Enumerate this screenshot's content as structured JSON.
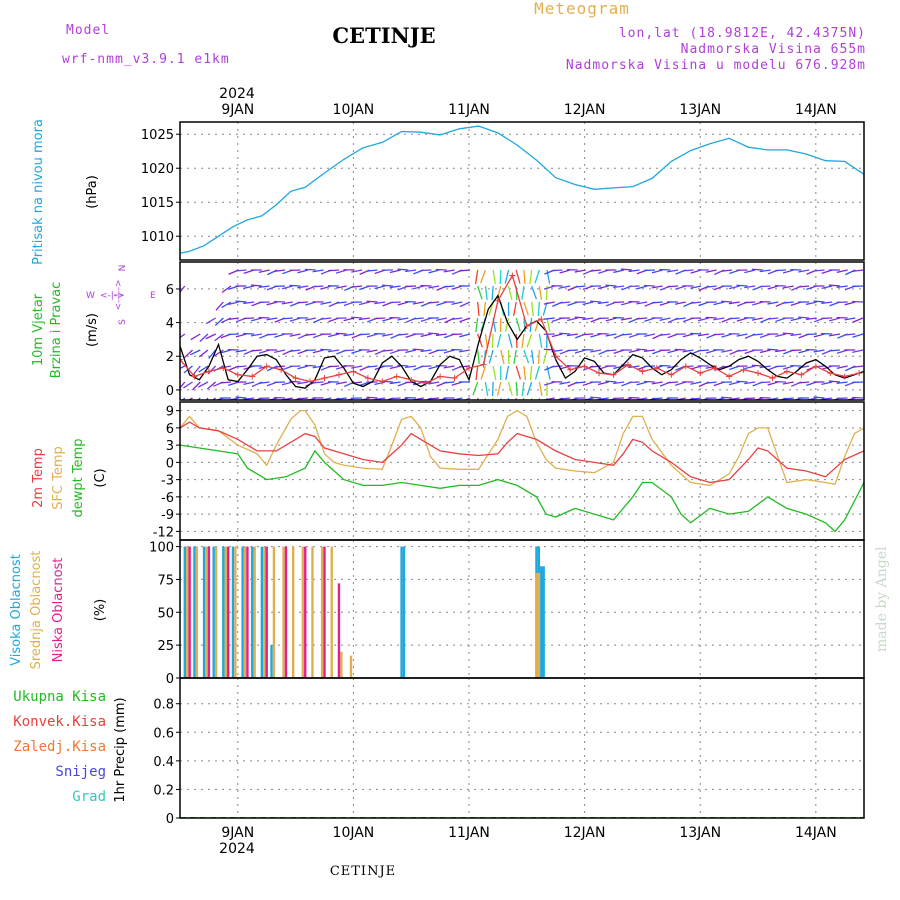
{
  "header": {
    "model_label": "Model",
    "model_value": "wrf-nmm_v3.9.1  e1km",
    "station": "CETINJE",
    "meteogram": "Meteogram",
    "lonlat": "lon,lat (18.9812E, 42.4375N)",
    "elevation": "Nadmorska Visina 655m",
    "model_elevation": "Nadmorska Visina u modelu 676.928m"
  },
  "footer": {
    "station": "CETINJE",
    "credit": "made by Angel"
  },
  "colors": {
    "magenta": "#b040d8",
    "tan": "#e0b050",
    "cyan": "#1ea8e0",
    "green": "#22bb22",
    "red": "#e84040",
    "pink": "#e02090",
    "orange": "#f07830",
    "blue": "#4848e0",
    "teal": "#30c8c0"
  },
  "time_axis": {
    "year": "2024",
    "days": [
      "9JAN",
      "10JAN",
      "11JAN",
      "12JAN",
      "13JAN",
      "14JAN"
    ],
    "x_range_hours": [
      -12,
      130
    ]
  },
  "chart_data": [
    {
      "type": "line",
      "ylabel": [
        "Pritisak na nivou mora",
        "(hPa)"
      ],
      "yticks": [
        1010,
        1015,
        1020,
        1025
      ],
      "ylim": [
        1006.5,
        1026.8
      ],
      "grid": true,
      "series": [
        {
          "color": "#1ea8e0",
          "x": [
            -12,
            -10,
            -7,
            -4,
            -1,
            2,
            5,
            8,
            11,
            14,
            18,
            22,
            26,
            30,
            34,
            38,
            42,
            46,
            50,
            54,
            58,
            62,
            66,
            70,
            74,
            78,
            82,
            86,
            90,
            94,
            98,
            102,
            106,
            110,
            114,
            118,
            122,
            126,
            130
          ],
          "y": [
            1007.5,
            1007.8,
            1008.6,
            1010.0,
            1011.4,
            1012.4,
            1013.0,
            1014.6,
            1016.6,
            1017.2,
            1019.3,
            1021.3,
            1023.0,
            1023.8,
            1025.4,
            1025.3,
            1024.9,
            1025.8,
            1026.2,
            1025.2,
            1023.4,
            1021.2,
            1018.6,
            1017.6,
            1016.9,
            1017.1,
            1017.3,
            1018.5,
            1021.0,
            1022.6,
            1023.6,
            1024.4,
            1023.1,
            1022.7,
            1022.7,
            1022.1,
            1021.1,
            1021.0,
            1019.1
          ]
        }
      ]
    },
    {
      "type": "line",
      "ylabel": [
        "10m Vjetar",
        "Brzina i Pravac",
        "(m/s)"
      ],
      "compass": [
        "N",
        "S",
        "W",
        "E"
      ],
      "yticks": [
        0,
        2,
        4,
        6
      ],
      "ylim": [
        -0.6,
        7.6
      ],
      "grid": true,
      "series": [
        {
          "name": "speed",
          "color": "#000000",
          "x": [
            -12,
            -10,
            -8,
            -6,
            -4,
            -2,
            0,
            2,
            4,
            6,
            8,
            10,
            12,
            14,
            16,
            18,
            20,
            22,
            24,
            26,
            28,
            30,
            32,
            34,
            36,
            38,
            40,
            42,
            44,
            46,
            48,
            50,
            52,
            54,
            56,
            58,
            60,
            62,
            64,
            66,
            68,
            70,
            72,
            74,
            76,
            78,
            80,
            82,
            84,
            86,
            88,
            90,
            92,
            94,
            96,
            98,
            100,
            102,
            104,
            106,
            108,
            110,
            112,
            114,
            116,
            118,
            120,
            122,
            124,
            126,
            128,
            130
          ],
          "y": [
            2.6,
            0.9,
            0.6,
            1.4,
            2.7,
            0.6,
            0.5,
            1.2,
            2.0,
            2.1,
            1.8,
            0.9,
            0.2,
            0.1,
            0.6,
            1.9,
            2.0,
            1.3,
            0.4,
            0.2,
            0.5,
            1.6,
            2.0,
            1.4,
            0.5,
            0.2,
            0.5,
            1.5,
            2.0,
            1.8,
            0.6,
            2.8,
            4.8,
            5.6,
            4.0,
            3.0,
            3.8,
            4.1,
            3.5,
            1.8,
            0.7,
            1.1,
            1.9,
            1.7,
            1.0,
            0.9,
            1.5,
            2.1,
            1.9,
            1.3,
            0.9,
            1.2,
            1.8,
            2.2,
            1.9,
            1.5,
            1.2,
            1.4,
            1.8,
            2.0,
            1.7,
            1.2,
            0.8,
            0.7,
            1.1,
            1.6,
            1.8,
            1.4,
            0.9,
            0.7,
            0.9,
            1.1
          ]
        },
        {
          "name": "gust",
          "color": "#e84040",
          "x": [
            -12,
            -9,
            -6,
            -3,
            0,
            3,
            6,
            9,
            12,
            15,
            18,
            21,
            24,
            27,
            30,
            33,
            36,
            39,
            42,
            45,
            48,
            51,
            54,
            57,
            60,
            63,
            66,
            69,
            72,
            75,
            78,
            81,
            84,
            87,
            90,
            93,
            96,
            99,
            102,
            105,
            108,
            111,
            114,
            117,
            120,
            123,
            126,
            129
          ],
          "y": [
            1.8,
            0.8,
            1.1,
            1.3,
            0.9,
            0.8,
            1.4,
            1.2,
            0.7,
            0.5,
            0.7,
            0.9,
            1.1,
            0.7,
            0.5,
            0.8,
            0.6,
            0.4,
            0.8,
            0.7,
            1.3,
            1.5,
            5.3,
            6.8,
            3.8,
            4.2,
            2.0,
            1.2,
            1.4,
            1.0,
            0.9,
            1.5,
            1.1,
            1.3,
            0.9,
            1.4,
            1.0,
            1.3,
            0.8,
            1.2,
            1.0,
            0.7,
            1.1,
            0.9,
            1.4,
            1.0,
            0.8,
            1.0
          ]
        }
      ]
    },
    {
      "type": "line",
      "ylabel": [
        "2m Temp",
        "SFC Temp",
        "dewpt Temp",
        "(C)"
      ],
      "yticks": [
        -12,
        -9,
        -6,
        -3,
        0,
        3,
        6,
        9
      ],
      "ylim": [
        -13.5,
        10.5
      ],
      "grid": true,
      "series": [
        {
          "name": "SFC Temp",
          "color": "#e0b050",
          "x": [
            -12,
            -10,
            -8,
            -4,
            0,
            4,
            6,
            8,
            11,
            13,
            14,
            16,
            18,
            20,
            22,
            26,
            30,
            32,
            34,
            36,
            38,
            40,
            42,
            46,
            50,
            54,
            56,
            58,
            60,
            62,
            64,
            66,
            70,
            74,
            78,
            80,
            82,
            84,
            86,
            90,
            94,
            98,
            102,
            104,
            106,
            108,
            110,
            114,
            118,
            122,
            124,
            126,
            128,
            130
          ],
          "y": [
            6.0,
            8.0,
            6.0,
            5.5,
            3.0,
            1.5,
            -0.5,
            3.0,
            7.5,
            9.0,
            9.0,
            6.5,
            1.5,
            0.0,
            -0.5,
            -1.0,
            -1.2,
            3.0,
            7.5,
            8.0,
            6.0,
            1.0,
            -1.0,
            -1.2,
            -1.2,
            4.0,
            8.0,
            9.0,
            8.0,
            3.5,
            0.5,
            -1.0,
            -1.5,
            -1.8,
            0.0,
            5.0,
            8.0,
            8.0,
            4.0,
            -0.5,
            -3.5,
            -4.0,
            -2.0,
            1.0,
            5.0,
            6.0,
            6.0,
            -3.5,
            -3.0,
            -3.5,
            -3.8,
            1.0,
            5.0,
            6.0
          ]
        },
        {
          "name": "2m Temp",
          "color": "#e84040",
          "x": [
            -12,
            -10,
            -8,
            -4,
            0,
            4,
            8,
            12,
            14,
            16,
            18,
            22,
            26,
            30,
            34,
            36,
            38,
            42,
            46,
            50,
            54,
            56,
            58,
            62,
            66,
            70,
            74,
            78,
            80,
            82,
            84,
            86,
            90,
            94,
            98,
            102,
            106,
            108,
            110,
            114,
            118,
            122,
            126,
            130
          ],
          "y": [
            6.0,
            7.0,
            6.0,
            5.5,
            4.0,
            2.0,
            2.0,
            4.0,
            5.0,
            4.5,
            2.5,
            1.5,
            0.5,
            0.0,
            3.0,
            5.0,
            4.0,
            2.0,
            1.5,
            1.2,
            1.5,
            3.5,
            5.0,
            4.0,
            2.0,
            0.5,
            0.0,
            -0.5,
            1.5,
            4.0,
            3.5,
            2.0,
            0.0,
            -2.5,
            -3.5,
            -3.0,
            0.5,
            2.5,
            2.0,
            -1.0,
            -1.5,
            -2.5,
            0.5,
            2.0
          ]
        },
        {
          "name": "dewpt Temp",
          "color": "#22bb22",
          "x": [
            -12,
            -8,
            -4,
            0,
            2,
            6,
            10,
            14,
            16,
            18,
            22,
            26,
            30,
            34,
            38,
            42,
            46,
            50,
            54,
            58,
            62,
            64,
            66,
            70,
            74,
            78,
            82,
            84,
            86,
            90,
            92,
            94,
            98,
            102,
            106,
            110,
            114,
            118,
            122,
            124,
            126,
            130
          ],
          "y": [
            3.0,
            2.5,
            2.0,
            1.5,
            -1.0,
            -3.0,
            -2.5,
            -1.0,
            2.0,
            0.0,
            -3.0,
            -4.0,
            -4.0,
            -3.5,
            -4.0,
            -4.5,
            -4.0,
            -4.0,
            -3.0,
            -4.0,
            -6.0,
            -9.0,
            -9.5,
            -8.0,
            -9.0,
            -10.0,
            -6.0,
            -3.5,
            -3.5,
            -6.0,
            -9.0,
            -10.5,
            -8.0,
            -9.0,
            -8.5,
            -6.0,
            -8.0,
            -9.0,
            -10.5,
            -12.0,
            -10.0,
            -3.5
          ]
        }
      ]
    },
    {
      "type": "bar",
      "ylabel": [
        "Visoka Oblacnost",
        "Srednja Oblacnost",
        "Niska Oblacnost",
        "(%)"
      ],
      "yticks": [
        0,
        25,
        50,
        75,
        100
      ],
      "ylim": [
        0,
        105
      ],
      "grid": true,
      "series": [
        {
          "name": "Visoka Oblacnost",
          "color": "#1ea8e0",
          "x": [
            -11,
            -9,
            -7,
            -5,
            -3,
            -1,
            1,
            3,
            5,
            7,
            34,
            34.5,
            62,
            62.5,
            63,
            63.5
          ],
          "y": [
            100,
            100,
            100,
            100,
            100,
            100,
            100,
            100,
            100,
            25,
            100,
            100,
            100,
            100,
            85,
            85
          ]
        },
        {
          "name": "Srednja Oblacnost",
          "color": "#e0b050",
          "x": [
            -10.5,
            -8.5,
            -6.5,
            -4.5,
            -2.5,
            -0.5,
            1.5,
            3.5,
            5.5,
            7.5,
            9.5,
            11.5,
            13.5,
            15.5,
            17.5,
            19.5,
            21.5,
            23.5,
            62,
            62.5
          ],
          "y": [
            100,
            100,
            100,
            100,
            100,
            100,
            100,
            100,
            100,
            100,
            100,
            100,
            100,
            100,
            100,
            100,
            20,
            17,
            80,
            80
          ]
        },
        {
          "name": "Niska Oblacnost",
          "color": "#e02090",
          "x": [
            -10,
            -6,
            -2,
            2,
            6,
            10,
            14,
            18,
            21
          ],
          "y": [
            100,
            100,
            100,
            100,
            100,
            100,
            100,
            100,
            72
          ]
        }
      ]
    },
    {
      "type": "line",
      "ylabel": [
        "1hr Precip (mm)"
      ],
      "legend": [
        "Ukupna  Kisa",
        "Konvek.Kisa",
        "Zaledj.Kisa",
        "Snijeg",
        "Grad"
      ],
      "yticks": [
        0,
        0.2,
        0.4,
        0.6,
        0.8
      ],
      "ylim": [
        0,
        0.98
      ],
      "grid": true,
      "series": [
        {
          "name": "Ukupna  Kisa",
          "color": "#22bb22",
          "x": [
            -12,
            130
          ],
          "y": [
            0,
            0
          ]
        }
      ]
    }
  ]
}
